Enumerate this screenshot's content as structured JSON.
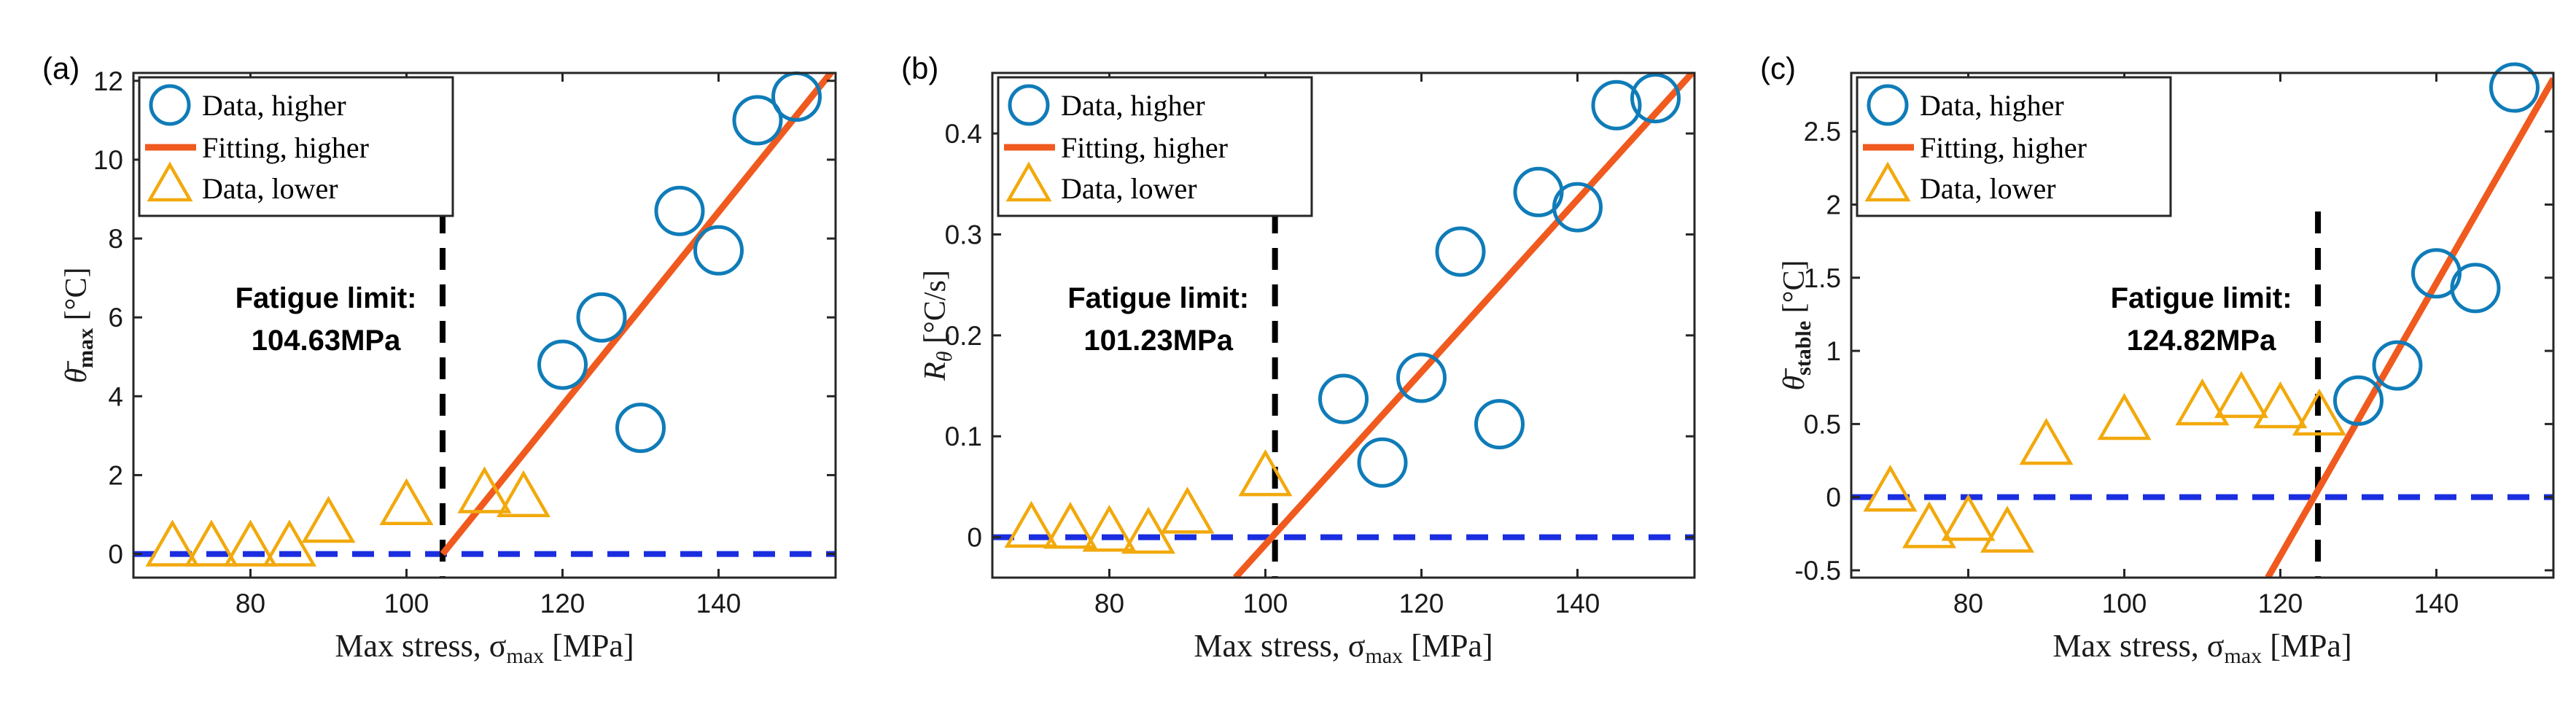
{
  "chart_data": [
    {
      "panel": "(a)",
      "type": "scatter",
      "ylabel": "θ̄max [°C]",
      "xlabel": "Max stress, σmax [MPa]",
      "xlim": [
        65,
        155
      ],
      "ylim": [
        -0.6,
        12.2
      ],
      "xticks": [
        80,
        100,
        120,
        140
      ],
      "xtick_labels": [
        "80",
        "100",
        "120",
        "140"
      ],
      "yticks": [
        0,
        2,
        4,
        6,
        8,
        10,
        12
      ],
      "ytick_labels": [
        "0",
        "2",
        "4",
        "6",
        "8",
        "10",
        "12"
      ],
      "legend": [
        "Data, higher",
        "Fitting, higher",
        "Data, lower"
      ],
      "legend_position": "top-left",
      "annotation": {
        "title": "Fatigue limit:",
        "value": "104.63MPa"
      },
      "fatigue_limit": 104.63,
      "series": [
        {
          "name": "Data, higher",
          "marker": "circle",
          "color": "#0f7cb8",
          "x": [
            120,
            125,
            130,
            135,
            140,
            145,
            150
          ],
          "y": [
            4.8,
            6.0,
            3.2,
            8.7,
            7.7,
            11.0,
            11.6
          ]
        },
        {
          "name": "Fitting, higher",
          "marker": "line",
          "color": "#f05a1e",
          "x": [
            104.63,
            155
          ],
          "y": [
            0,
            12.35
          ]
        },
        {
          "name": "Data, lower",
          "marker": "triangle",
          "color": "#f2a90c",
          "x": [
            70,
            75,
            80,
            85,
            90,
            100,
            110,
            115
          ],
          "y": [
            0.05,
            0.05,
            0.05,
            0.05,
            0.65,
            1.1,
            1.4,
            1.3
          ]
        }
      ]
    },
    {
      "panel": "(b)",
      "type": "scatter",
      "ylabel": "Rθ [°C/s]",
      "xlabel": "Max stress, σmax [MPa]",
      "xlim": [
        65,
        155
      ],
      "ylim": [
        -0.04,
        0.46
      ],
      "xticks": [
        80,
        100,
        120,
        140
      ],
      "xtick_labels": [
        "80",
        "100",
        "120",
        "140"
      ],
      "yticks": [
        0,
        0.1,
        0.2,
        0.3,
        0.4
      ],
      "ytick_labels": [
        "0",
        "0.1",
        "0.2",
        "0.3",
        "0.4"
      ],
      "legend": [
        "Data, higher",
        "Fitting, higher",
        "Data, lower"
      ],
      "legend_position": "top-left",
      "annotation": {
        "title": "Fatigue limit:",
        "value": "101.23MPa"
      },
      "fatigue_limit": 101.23,
      "series": [
        {
          "name": "Data, higher",
          "marker": "circle",
          "color": "#0f7cb8",
          "x": [
            110,
            115,
            120,
            125,
            130,
            135,
            140,
            145,
            150
          ],
          "y": [
            0.137,
            0.074,
            0.158,
            0.283,
            0.112,
            0.342,
            0.327,
            0.428,
            0.435
          ]
        },
        {
          "name": "Fitting, higher",
          "marker": "line",
          "color": "#f05a1e",
          "x": [
            96.15,
            154.7
          ],
          "y": [
            -0.04,
            0.46
          ]
        },
        {
          "name": "Data, lower",
          "marker": "triangle",
          "color": "#f2a90c",
          "x": [
            70,
            75,
            80,
            85,
            90,
            100
          ],
          "y": [
            0.004,
            0.003,
            0.0,
            -0.002,
            0.018,
            0.055
          ]
        }
      ]
    },
    {
      "panel": "(c)",
      "type": "scatter",
      "ylabel": "θ̄stable [°C]",
      "xlabel": "Max stress, σmax [MPa]",
      "xlim": [
        65,
        155
      ],
      "ylim": [
        -0.55,
        2.9
      ],
      "xticks": [
        80,
        100,
        120,
        140
      ],
      "xtick_labels": [
        "80",
        "100",
        "120",
        "140"
      ],
      "yticks": [
        -0.5,
        0,
        0.5,
        1,
        1.5,
        2,
        2.5
      ],
      "ytick_labels": [
        "-0.5",
        "0",
        "0.5",
        "1",
        "1.5",
        "2",
        "2.5"
      ],
      "legend": [
        "Data, higher",
        "Fitting, higher",
        "Data, lower"
      ],
      "legend_position": "top-left",
      "annotation": {
        "title": "Fatigue limit:",
        "value": "124.82MPa"
      },
      "fatigue_limit": 124.82,
      "series": [
        {
          "name": "Data, higher",
          "marker": "circle",
          "color": "#0f7cb8",
          "x": [
            130,
            135,
            140,
            145,
            150
          ],
          "y": [
            0.66,
            0.9,
            1.53,
            1.43,
            2.8
          ]
        },
        {
          "name": "Fitting, higher",
          "marker": "line",
          "color": "#f05a1e",
          "x": [
            118.4,
            155
          ],
          "y": [
            -0.55,
            2.86
          ]
        },
        {
          "name": "Data, lower",
          "marker": "triangle",
          "color": "#f2a90c",
          "x": [
            70,
            75,
            80,
            85,
            90,
            100,
            110,
            115,
            120,
            125
          ],
          "y": [
            0.0,
            -0.25,
            -0.2,
            -0.28,
            0.32,
            0.49,
            0.59,
            0.64,
            0.57,
            0.52
          ]
        }
      ]
    }
  ],
  "colors": {
    "higher_data": "#0f7cb8",
    "fit": "#f05a1e",
    "lower_data": "#f2a90c",
    "zero_line": "#1a2ee0",
    "limit_line": "#000000"
  }
}
